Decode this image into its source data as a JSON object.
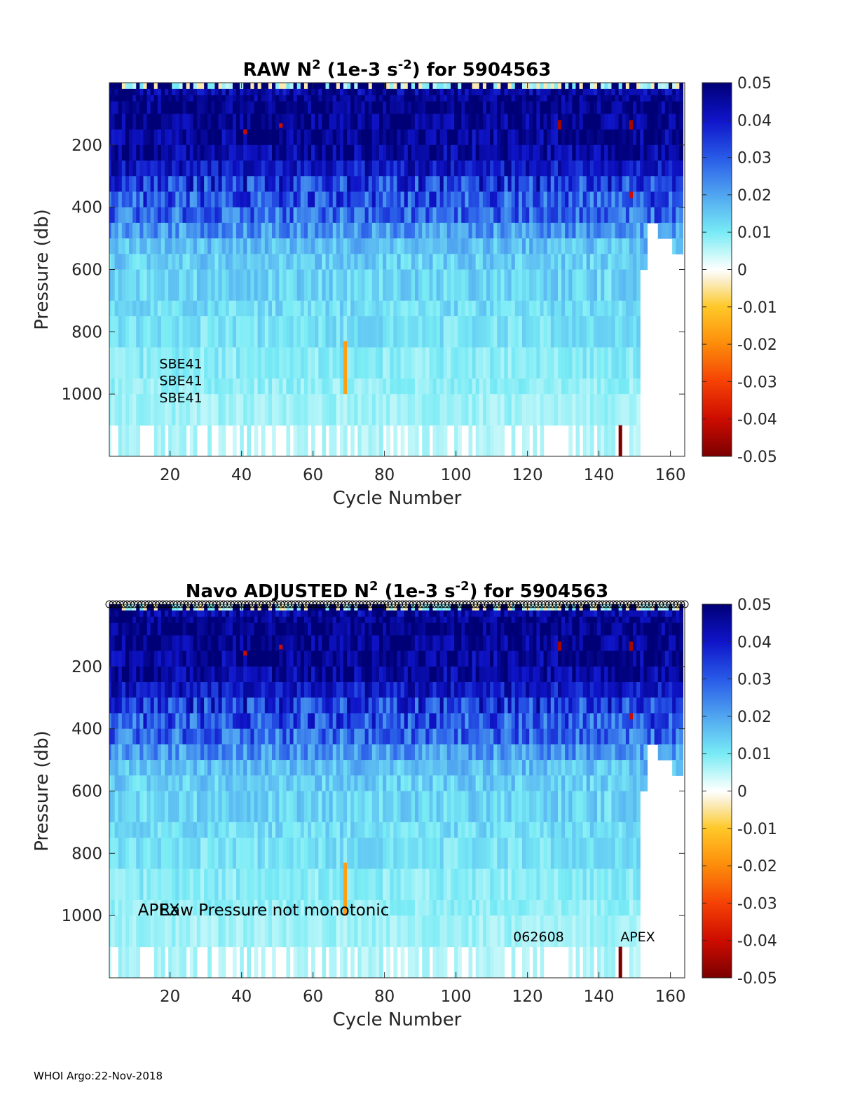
{
  "chart_data": [
    {
      "type": "heatmap",
      "title_parts": [
        "RAW N",
        "2",
        " (1e-3 s",
        "-2",
        ") for 5904563"
      ],
      "xlabel": "Cycle Number",
      "ylabel": "Pressure (db)",
      "xlim": [
        3,
        164
      ],
      "ylim": [
        1200,
        0
      ],
      "xticks": [
        20,
        40,
        60,
        80,
        100,
        120,
        140,
        160
      ],
      "yticks": [
        200,
        400,
        600,
        800,
        1000
      ],
      "colorbar": {
        "ticks": [
          "0.05",
          "0.04",
          "0.03",
          "0.02",
          "0.01",
          "0",
          "-0.01",
          "-0.02",
          "-0.03",
          "-0.04",
          "-0.05"
        ],
        "range": [
          -0.05,
          0.05
        ]
      },
      "annotations": [
        {
          "text": "SBE41",
          "x": 17,
          "y": 917
        },
        {
          "text": "SBE41",
          "x": 17,
          "y": 972
        },
        {
          "text": "SBE41",
          "x": 17,
          "y": 1027
        }
      ],
      "pressure_levels": [
        0,
        20,
        40,
        60,
        100,
        150,
        200,
        250,
        300,
        350,
        400,
        450,
        500,
        550,
        600,
        700,
        750,
        850,
        950,
        1000,
        1100,
        1200
      ],
      "level_mean_n2": [
        0.0,
        0.045,
        0.048,
        0.048,
        0.047,
        0.046,
        0.045,
        0.04,
        0.035,
        0.031,
        0.028,
        0.022,
        0.016,
        0.014,
        0.013,
        0.012,
        0.011,
        0.009,
        0.008,
        0.007,
        0.006
      ],
      "last_cycle": 151,
      "anomalies": [
        {
          "cycle": 69,
          "p_from": 830,
          "p_to": 1000,
          "n2": -0.017
        },
        {
          "cycle": 146,
          "p_from": 1100,
          "p_to": 1200,
          "n2": -0.05
        },
        {
          "cycle": 41,
          "p_from": 150,
          "p_to": 165,
          "n2": -0.04
        },
        {
          "cycle": 51,
          "p_from": 130,
          "p_to": 145,
          "n2": -0.04
        },
        {
          "cycle": 129,
          "p_from": 120,
          "p_to": 150,
          "n2": -0.045
        },
        {
          "cycle": 149,
          "p_from": 120,
          "p_to": 150,
          "n2": -0.045
        },
        {
          "cycle": 149,
          "p_from": 350,
          "p_to": 370,
          "n2": -0.04
        }
      ]
    },
    {
      "type": "heatmap",
      "title_parts": [
        "Navo  ADJUSTED N",
        "2",
        " (1e-3 s",
        "-2",
        ") for 5904563"
      ],
      "xlabel": "Cycle Number",
      "ylabel": "Pressure (db)",
      "xlim": [
        3,
        164
      ],
      "ylim": [
        1200,
        0
      ],
      "xticks": [
        20,
        40,
        60,
        80,
        100,
        120,
        140,
        160
      ],
      "yticks": [
        200,
        400,
        600,
        800,
        1000
      ],
      "colorbar": {
        "ticks": [
          "0.05",
          "0.04",
          "0.03",
          "0.02",
          "0.01",
          "0",
          "-0.01",
          "-0.02",
          "-0.03",
          "-0.04",
          "-0.05"
        ],
        "range": [
          -0.05,
          0.05
        ]
      },
      "annotations": [
        {
          "text": "APEX",
          "x": 11,
          "y": 1000
        },
        {
          "text": "Raw Pressure not monotonic",
          "x": 17,
          "y": 1000
        },
        {
          "text": "062608",
          "x": 116,
          "y": 1083
        },
        {
          "text": "APEX",
          "x": 146,
          "y": 1083
        }
      ],
      "top_markers": {
        "cycle_from": 3,
        "cycle_to": 164,
        "pressure": 0
      },
      "pressure_levels": [
        0,
        20,
        40,
        60,
        100,
        150,
        200,
        250,
        300,
        350,
        400,
        450,
        500,
        550,
        600,
        700,
        750,
        850,
        950,
        1000,
        1100,
        1200
      ],
      "level_mean_n2": [
        0.0,
        0.045,
        0.048,
        0.048,
        0.047,
        0.046,
        0.045,
        0.04,
        0.035,
        0.031,
        0.028,
        0.022,
        0.016,
        0.014,
        0.013,
        0.012,
        0.011,
        0.009,
        0.008,
        0.007,
        0.006
      ],
      "last_cycle": 151,
      "anomalies": [
        {
          "cycle": 69,
          "p_from": 830,
          "p_to": 1000,
          "n2": -0.017
        },
        {
          "cycle": 146,
          "p_from": 1100,
          "p_to": 1200,
          "n2": -0.05
        },
        {
          "cycle": 41,
          "p_from": 150,
          "p_to": 165,
          "n2": -0.04
        },
        {
          "cycle": 51,
          "p_from": 130,
          "p_to": 145,
          "n2": -0.04
        },
        {
          "cycle": 129,
          "p_from": 120,
          "p_to": 150,
          "n2": -0.045
        },
        {
          "cycle": 149,
          "p_from": 120,
          "p_to": 150,
          "n2": -0.045
        },
        {
          "cycle": 149,
          "p_from": 350,
          "p_to": 370,
          "n2": -0.04
        }
      ]
    }
  ],
  "footer": "WHOI Argo:22-Nov-2018"
}
